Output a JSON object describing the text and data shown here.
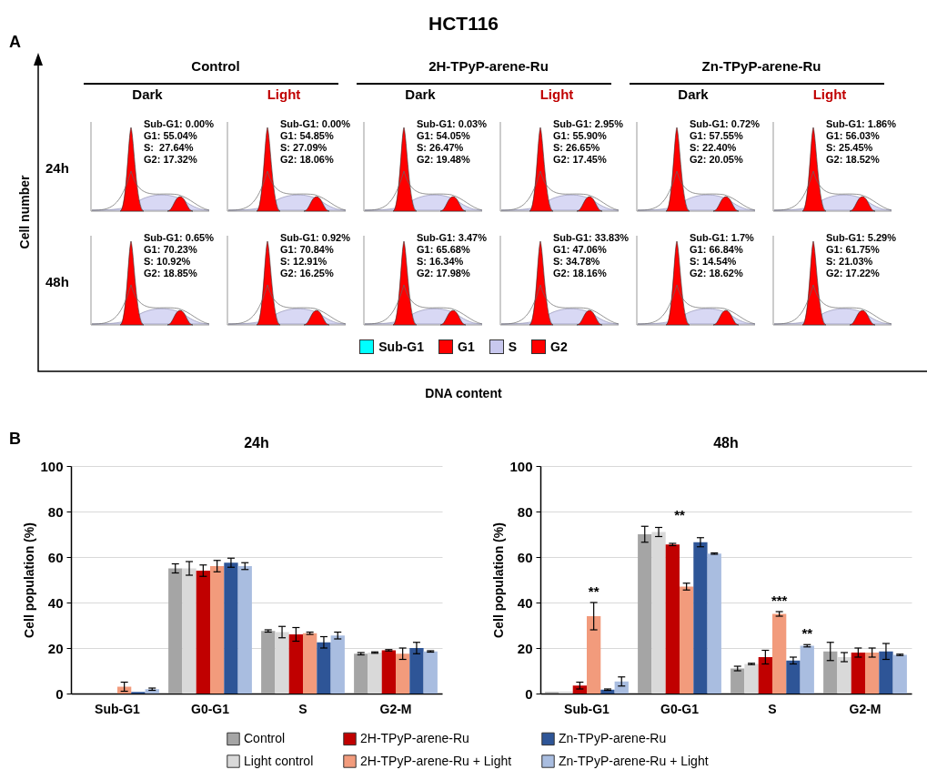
{
  "chart_data": [
    {
      "type": "other",
      "title": "HCT116",
      "xlabel": "DNA content",
      "ylabel": "Cell number",
      "categories": [
        "Sub-G1",
        "G1",
        "S",
        "G2"
      ],
      "colors": [
        "#00ffff",
        "#ff0000",
        "#c8c8ee",
        "#ff0000"
      ],
      "annotations": [
        "A",
        "Control",
        "2H-TPyP-arene-Ru",
        "Zn-TPyP-arene-Ru",
        "Dark",
        "Light",
        "Dark",
        "Light",
        "Dark",
        "Light",
        "24h",
        "48h",
        "Sub-G1: 0.00%\nG1: 55.04%\nS:  27.64%\nG2: 17.32%",
        "Sub-G1: 0.00%\nG1: 54.85%\nS: 27.09%\nG2: 18.06%",
        "Sub-G1: 0.03%\nG1: 54.05%\nS: 26.47%\nG2: 19.48%",
        "Sub-G1: 2.95%\nG1: 55.90%\nS: 26.65%\nG2: 17.45%",
        "Sub-G1: 0.72%\nG1: 57.55%\nS: 22.40%\nG2: 20.05%",
        "Sub-G1: 1.86%\nG1: 56.03%\nS: 25.45%\nG2: 18.52%",
        "Sub-G1: 0.65%\nG1: 70.23%\nS: 10.92%\nG2: 18.85%",
        "Sub-G1: 0.92%\nG1: 70.84%\nS: 12.91%\nG2: 16.25%",
        "Sub-G1: 3.47%\nG1: 65.68%\nS: 16.34%\nG2: 17.98%",
        "Sub-G1: 33.83%\nG1: 47.06%\nS: 34.78%\nG2: 18.16%",
        "Sub-G1: 1.7%\nG1: 66.84%\nS: 14.54%\nG2: 18.62%",
        "Sub-G1: 5.29%\nG1: 61.75%\nS: 21.03%\nG2: 17.22%"
      ]
    },
    {
      "type": "bar",
      "title": "24h",
      "ylabel": "Cell population (%)",
      "categories": [
        "Sub-G1",
        "G0-G1",
        "S",
        "G2-M"
      ],
      "ylim": [
        0,
        100
      ],
      "yticks": [
        0,
        20,
        40,
        60,
        80,
        100
      ],
      "grid": "y",
      "annotations": [
        "B"
      ],
      "series": [
        {
          "color": "#a5a5a5",
          "values": [
            0,
            55,
            27.5,
            17.5
          ],
          "errors": [
            null,
            2,
            0.5,
            0.5
          ]
        },
        {
          "color": "#d9d9d9",
          "values": [
            0,
            55,
            27,
            18
          ],
          "errors": [
            null,
            3,
            2.5,
            0.3
          ]
        },
        {
          "color": "#c00000",
          "values": [
            0,
            54,
            26,
            19
          ],
          "errors": [
            null,
            2.5,
            3,
            0.3
          ]
        },
        {
          "color": "#f29b7c",
          "values": [
            3,
            56,
            26.5,
            17.5
          ],
          "errors": [
            2,
            2.5,
            0.5,
            2.5
          ]
        },
        {
          "color": "#2e5597",
          "values": [
            0.7,
            57.5,
            22.5,
            20
          ],
          "errors": [
            null,
            2,
            2.5,
            2.5
          ]
        },
        {
          "color": "#a9bde0",
          "values": [
            1.9,
            56,
            25.5,
            18.5
          ],
          "errors": [
            0.5,
            1.5,
            1.5,
            0.3
          ]
        }
      ]
    },
    {
      "type": "bar",
      "title": "48h",
      "ylabel": "Cell population (%)",
      "categories": [
        "Sub-G1",
        "G0-G1",
        "S",
        "G2-M"
      ],
      "ylim": [
        0,
        100
      ],
      "yticks": [
        0,
        20,
        40,
        60,
        80,
        100
      ],
      "grid": "y",
      "legend": "bottom",
      "series": [
        {
          "name": "Control",
          "color": "#a5a5a5",
          "values": [
            0.7,
            70,
            11,
            18.5
          ],
          "errors": [
            null,
            3.5,
            1,
            4
          ]
        },
        {
          "name": "Light control",
          "color": "#d9d9d9",
          "values": [
            0.9,
            71,
            13,
            16
          ],
          "errors": [
            null,
            2,
            0.3,
            2
          ]
        },
        {
          "name": "2H-TPyP-arene-Ru",
          "color": "#c00000",
          "values": [
            3.5,
            65.5,
            16,
            18
          ],
          "errors": [
            1.5,
            0.5,
            3,
            2
          ]
        },
        {
          "name": "2H-TPyP-arene-Ru + Light",
          "color": "#f29b7c",
          "values": [
            34,
            47,
            35,
            18
          ],
          "errors": [
            6,
            1.5,
            1,
            2
          ]
        },
        {
          "name": "Zn-TPyP-arene-Ru",
          "color": "#2e5597",
          "values": [
            1.7,
            66.5,
            14.5,
            18.5
          ],
          "errors": [
            0.3,
            2,
            1.5,
            3.5
          ]
        },
        {
          "name": "Zn-TPyP-arene-Ru + Light",
          "color": "#a9bde0",
          "values": [
            5.3,
            61.5,
            21,
            17
          ],
          "errors": [
            2,
            0.3,
            0.5,
            0.3
          ]
        }
      ],
      "annotations": [
        "**",
        "**",
        "***",
        "**"
      ]
    }
  ]
}
